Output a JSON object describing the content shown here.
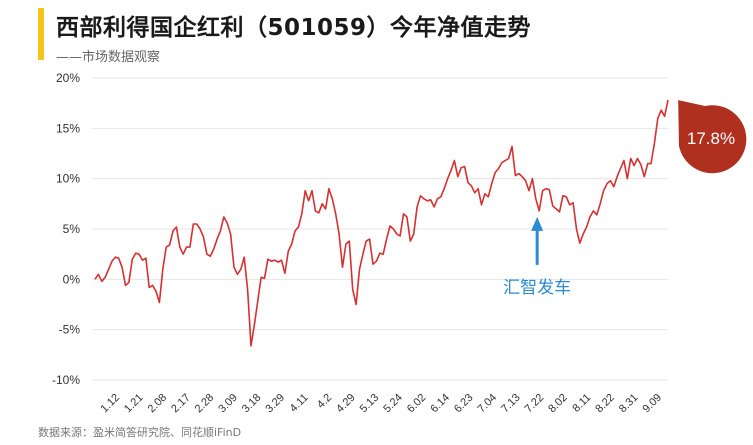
{
  "header": {
    "title": "西部利得国企红利（501059）今年净值走势",
    "subtitle": "——市场数据观察"
  },
  "footer": {
    "source": "数据来源：盈米简答研究院、同花顺iFinD"
  },
  "colors": {
    "line": "#d63031",
    "grid": "#e6e6e6",
    "accent": "#f5c518",
    "end_bubble": "#b03020",
    "annotation": "#2a8ad4"
  },
  "chart_data": {
    "type": "line",
    "title": "西部利得国企红利（501059）今年净值走势",
    "ylim": [
      -10,
      20
    ],
    "yticks": [
      -10,
      -5,
      0,
      5,
      10,
      15,
      20
    ],
    "ytick_labels": [
      "-10%",
      "-5%",
      "0%",
      "5%",
      "10%",
      "15%",
      "20%"
    ],
    "xtick_labels": [
      "1.12",
      "1.21",
      "2.08",
      "2.17",
      "2.28",
      "3.09",
      "3.18",
      "3.29",
      "4.11",
      "4.2",
      "4.29",
      "5.13",
      "5.24",
      "6.02",
      "6.14",
      "6.23",
      "7.04",
      "7.13",
      "7.22",
      "8.02",
      "8.11",
      "8.22",
      "8.31",
      "9.09"
    ],
    "grid": true,
    "series": [
      {
        "values": [
          0.0,
          0.5,
          -0.2,
          0.2,
          1.0,
          1.8,
          2.2,
          2.1,
          1.2,
          -0.6,
          -0.3,
          2.0,
          2.6,
          2.5,
          1.9,
          2.1,
          -0.8,
          -0.6,
          -1.2,
          -2.3,
          1.0,
          3.2,
          3.4,
          4.8,
          5.2,
          3.2,
          2.5,
          3.2,
          3.2,
          5.5,
          5.5,
          5.0,
          4.2,
          2.5,
          2.3,
          3.0,
          4.0,
          4.8,
          6.2,
          5.6,
          4.5,
          1.2,
          0.5,
          1.0,
          2.2,
          -1.0,
          -6.6,
          -4.5,
          -2.2,
          0.2,
          0.1,
          2.0,
          1.8,
          1.9,
          1.7,
          1.9,
          0.6,
          2.8,
          3.5,
          4.8,
          5.2,
          6.5,
          8.8,
          7.8,
          8.8,
          6.8,
          6.6,
          7.5,
          7.0,
          9.0,
          8.0,
          6.5,
          4.5,
          1.2,
          3.5,
          3.8,
          -1.0,
          -2.5,
          1.0,
          2.5,
          3.8,
          4.0,
          1.5,
          1.8,
          2.6,
          2.5,
          4.0,
          5.3,
          5.0,
          4.5,
          4.3,
          6.5,
          6.2,
          3.8,
          4.5,
          7.2,
          8.3,
          8.0,
          7.8,
          7.9,
          7.2,
          8.0,
          8.2,
          9.0,
          10.0,
          10.8,
          11.8,
          10.2,
          11.1,
          11.2,
          9.6,
          9.3,
          8.6,
          9.0,
          7.4,
          8.5,
          8.2,
          9.5,
          10.6,
          11.0,
          11.6,
          11.8,
          12.0,
          13.2,
          10.3,
          10.5,
          10.2,
          9.8,
          8.8,
          10.0,
          8.0,
          6.8,
          8.8,
          9.0,
          8.9,
          7.3,
          7.0,
          6.7,
          8.3,
          8.2,
          7.4,
          7.6,
          5.0,
          3.6,
          4.5,
          5.2,
          6.2,
          6.8,
          6.4,
          7.5,
          8.8,
          9.5,
          9.8,
          9.2,
          10.2,
          11.0,
          11.8,
          10.0,
          12.0,
          11.3,
          12.0,
          11.4,
          10.2,
          11.5,
          11.5,
          13.5,
          16.0,
          16.8,
          16.2,
          17.8
        ]
      }
    ],
    "annotations": [
      {
        "text": "汇智发车",
        "at_index": 131,
        "value": 6.8
      },
      {
        "text": "17.8%",
        "at_index": 172,
        "value": 17.8
      }
    ]
  }
}
